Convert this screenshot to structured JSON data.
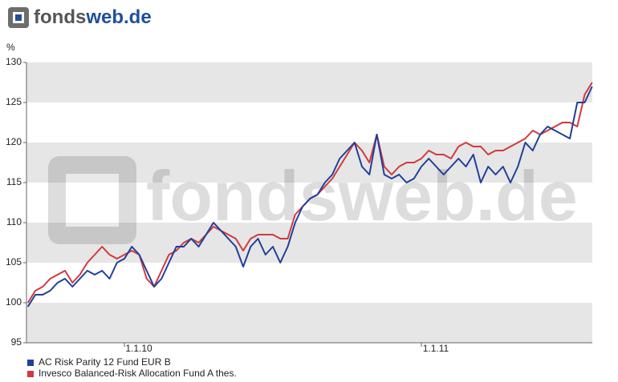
{
  "logo": {
    "part1": "fonds",
    "part2": "web.de"
  },
  "chart_data": {
    "type": "line",
    "y_unit": "%",
    "categories": [
      null,
      null,
      null,
      null,
      null,
      null,
      null,
      null,
      null,
      null,
      null,
      null,
      null,
      "1.1.10",
      null,
      null,
      null,
      null,
      null,
      null,
      null,
      null,
      null,
      null,
      null,
      null,
      null,
      null,
      null,
      null,
      null,
      null,
      null,
      null,
      null,
      null,
      null,
      null,
      null,
      null,
      null,
      null,
      null,
      null,
      null,
      null,
      null,
      null,
      null,
      null,
      null,
      null,
      null,
      "1.1.11",
      null,
      null,
      null,
      null,
      null,
      null,
      null,
      null,
      null,
      null,
      null,
      null,
      null,
      null,
      null,
      null,
      null,
      null,
      null,
      null,
      null,
      null,
      null
    ],
    "series": [
      {
        "name": "AC Risk Parity 12 Fund EUR B",
        "color": "#1f3f9a",
        "values": [
          99.5,
          101,
          101,
          101.5,
          102.5,
          103,
          102,
          103,
          104,
          103.5,
          104,
          103,
          105,
          105.5,
          107,
          106,
          104,
          102,
          103,
          105,
          107,
          107,
          108,
          107,
          108.5,
          110,
          109,
          108,
          107,
          104.5,
          107,
          108,
          106,
          107,
          105,
          107,
          110,
          112,
          113,
          113.5,
          115,
          116,
          118,
          119,
          120,
          117,
          116,
          121,
          116,
          115.5,
          116,
          115,
          115.5,
          117,
          118,
          117,
          116,
          117,
          118,
          117,
          118.5,
          115,
          117,
          116,
          117,
          115,
          117,
          120,
          119,
          121,
          122,
          121.5,
          121,
          120.5,
          125,
          125,
          127
        ]
      },
      {
        "name": "Invesco Balanced-Risk Allocation Fund A thes.",
        "color": "#d0393f",
        "values": [
          100,
          101.5,
          102,
          103,
          103.5,
          104,
          102.5,
          103.5,
          105,
          106,
          107,
          106,
          105.5,
          106,
          106.5,
          106,
          103,
          102,
          104,
          106,
          106.5,
          107.5,
          108,
          107.5,
          108.5,
          109.5,
          109,
          108.5,
          108,
          106.5,
          108,
          108.5,
          108.5,
          108.5,
          108,
          108,
          111,
          112,
          113,
          113.5,
          114.5,
          115.5,
          117,
          118.5,
          120,
          119,
          117.5,
          121,
          117,
          116,
          117,
          117.5,
          117.5,
          118,
          119,
          118.5,
          118.5,
          118,
          119.5,
          120,
          119.5,
          119.5,
          118.5,
          119,
          119,
          119.5,
          120,
          120.5,
          121.5,
          121,
          121.5,
          122,
          122.5,
          122.5,
          122,
          126,
          127.5
        ]
      }
    ],
    "ylim": [
      95,
      130
    ],
    "yticks": [
      95,
      100,
      105,
      110,
      115,
      120,
      125,
      130
    ],
    "grid": true
  }
}
